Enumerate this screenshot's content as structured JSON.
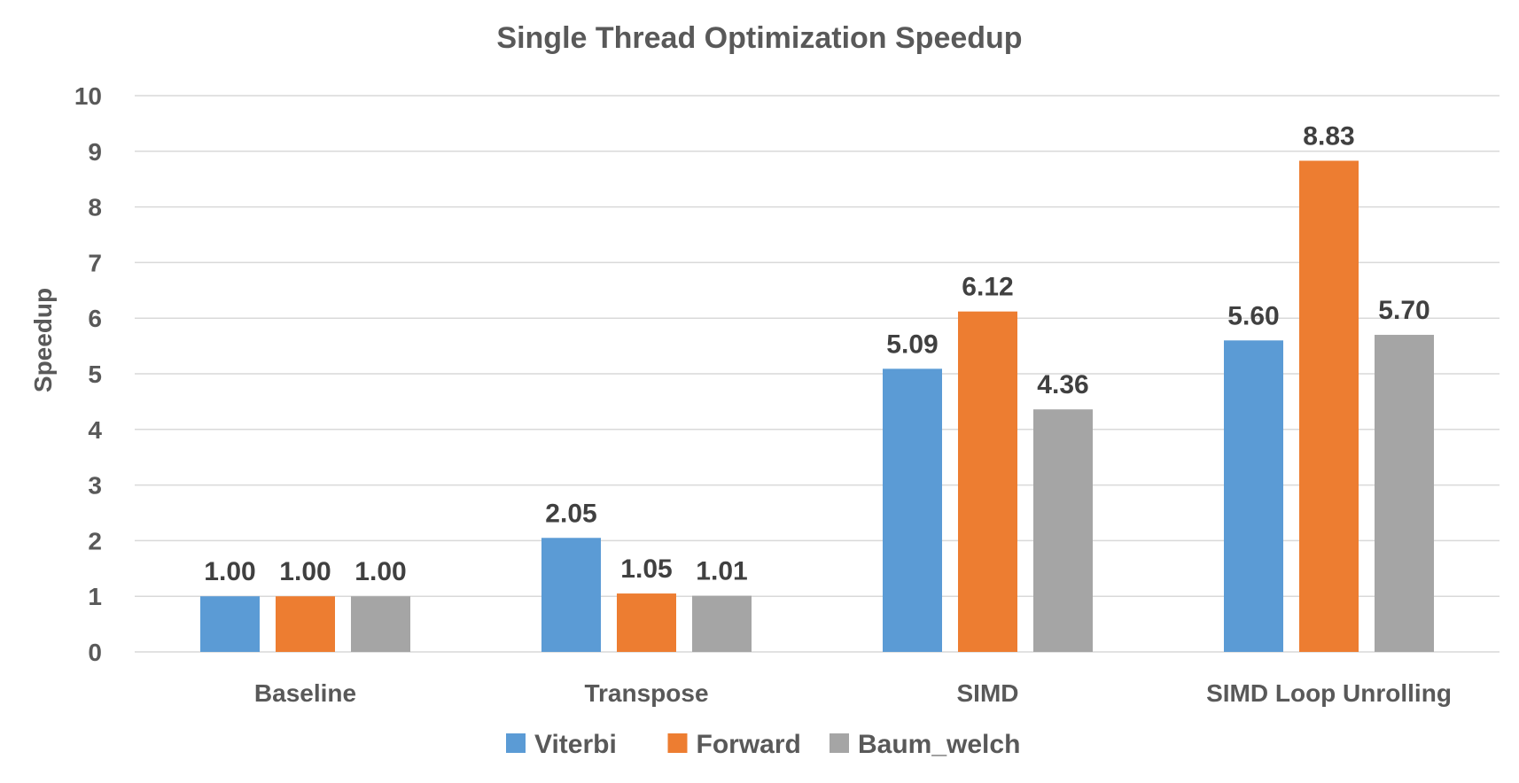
{
  "chart_data": {
    "type": "bar",
    "title": "Single Thread Optimization Speedup",
    "xlabel": "",
    "ylabel": "Speedup",
    "ylim": [
      0,
      10
    ],
    "yticks": [
      "0",
      "1",
      "2",
      "3",
      "4",
      "5",
      "6",
      "7",
      "8",
      "9",
      "10"
    ],
    "grid": true,
    "legend_position": "bottom",
    "categories": [
      "Baseline",
      "Transpose",
      "SIMD",
      "SIMD Loop Unrolling"
    ],
    "series": [
      {
        "name": "Viterbi",
        "color": "#5b9bd5",
        "values": [
          1.0,
          2.05,
          5.09,
          5.6
        ],
        "labels": [
          "1.00",
          "2.05",
          "5.09",
          "5.60"
        ]
      },
      {
        "name": "Forward",
        "color": "#ed7d31",
        "values": [
          1.0,
          1.05,
          6.12,
          8.83
        ],
        "labels": [
          "1.00",
          "1.05",
          "6.12",
          "8.83"
        ]
      },
      {
        "name": "Baum_welch",
        "color": "#a5a5a5",
        "values": [
          1.0,
          1.01,
          4.36,
          5.7
        ],
        "labels": [
          "1.00",
          "1.01",
          "4.36",
          "5.70"
        ]
      }
    ]
  }
}
